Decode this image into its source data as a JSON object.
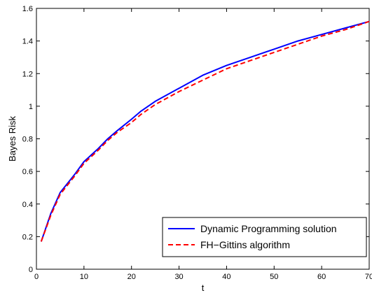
{
  "chart_data": {
    "type": "line",
    "title": "",
    "xlabel": "t",
    "ylabel": "Bayes Risk",
    "xlim": [
      0,
      70
    ],
    "ylim": [
      0,
      1.6
    ],
    "x_ticks": [
      0,
      10,
      20,
      30,
      40,
      50,
      60,
      70
    ],
    "x_tick_labels": [
      "0",
      "10",
      "20",
      "30",
      "40",
      "50",
      "60",
      "70"
    ],
    "y_ticks": [
      0,
      0.2,
      0.4,
      0.6,
      0.8,
      1,
      1.2,
      1.4,
      1.6
    ],
    "y_tick_labels": [
      "0",
      "0.2",
      "0.4",
      "0.6",
      "0.8",
      "1",
      "1.2",
      "1.4",
      "1.6"
    ],
    "grid": false,
    "legend_position": "bottom-right",
    "series": [
      {
        "name": "Dynamic Programming solution",
        "color": "#0000ff",
        "line_style": "solid",
        "x": [
          1,
          3,
          5,
          8,
          10,
          13,
          15,
          17,
          20,
          22,
          25,
          30,
          35,
          40,
          45,
          50,
          55,
          60,
          65,
          70
        ],
        "y": [
          0.17,
          0.34,
          0.47,
          0.58,
          0.66,
          0.74,
          0.8,
          0.85,
          0.92,
          0.97,
          1.03,
          1.11,
          1.19,
          1.25,
          1.3,
          1.35,
          1.4,
          1.44,
          1.48,
          1.52
        ]
      },
      {
        "name": "FH−Gittins algorithm",
        "color": "#ff0000",
        "line_style": "dashed",
        "x": [
          1,
          3,
          5,
          8,
          10,
          13,
          15,
          17,
          20,
          22,
          25,
          30,
          35,
          40,
          45,
          50,
          55,
          60,
          65,
          70
        ],
        "y": [
          0.17,
          0.33,
          0.46,
          0.57,
          0.65,
          0.73,
          0.79,
          0.84,
          0.9,
          0.95,
          1.01,
          1.09,
          1.16,
          1.23,
          1.28,
          1.33,
          1.38,
          1.43,
          1.47,
          1.52
        ]
      }
    ]
  },
  "colors": {
    "axis": "#000000",
    "background": "#ffffff"
  }
}
